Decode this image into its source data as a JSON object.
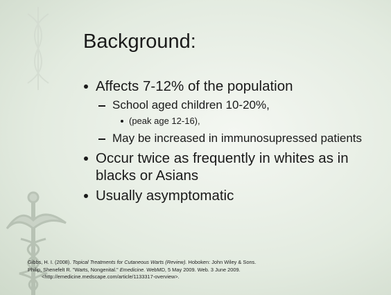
{
  "title": "Background:",
  "bullets": [
    {
      "text": "Affects 7-12% of the population",
      "sub": [
        {
          "text": "School aged children 10-20%,",
          "sub": [
            {
              "text": "(peak age 12-16),"
            }
          ]
        },
        {
          "text": "May be increased in immunosupressed patients"
        }
      ]
    },
    {
      "text": "Occur twice as frequently in whites as in blacks or Asians"
    },
    {
      "text": "Usually asymptomatic"
    }
  ],
  "references": [
    [
      {
        "text": "Gibbs, H. I. (2008). "
      },
      {
        "text": "Topical Treatments for Cutaneous Warts (Review).",
        "italic": true
      },
      {
        "text": " Hoboken: John Wiley & Sons."
      }
    ],
    [
      {
        "text": "Philip, Shenefelt R. \"Warts, Nongenital.\" "
      },
      {
        "text": "Emedicine.",
        "italic": true
      },
      {
        "text": " WebMD, 5 May 2009. Web. 3 June 2009."
      }
    ],
    [
      {
        "text": "<http://emedicine.medscape.com/article/1133317-overview>."
      }
    ]
  ]
}
